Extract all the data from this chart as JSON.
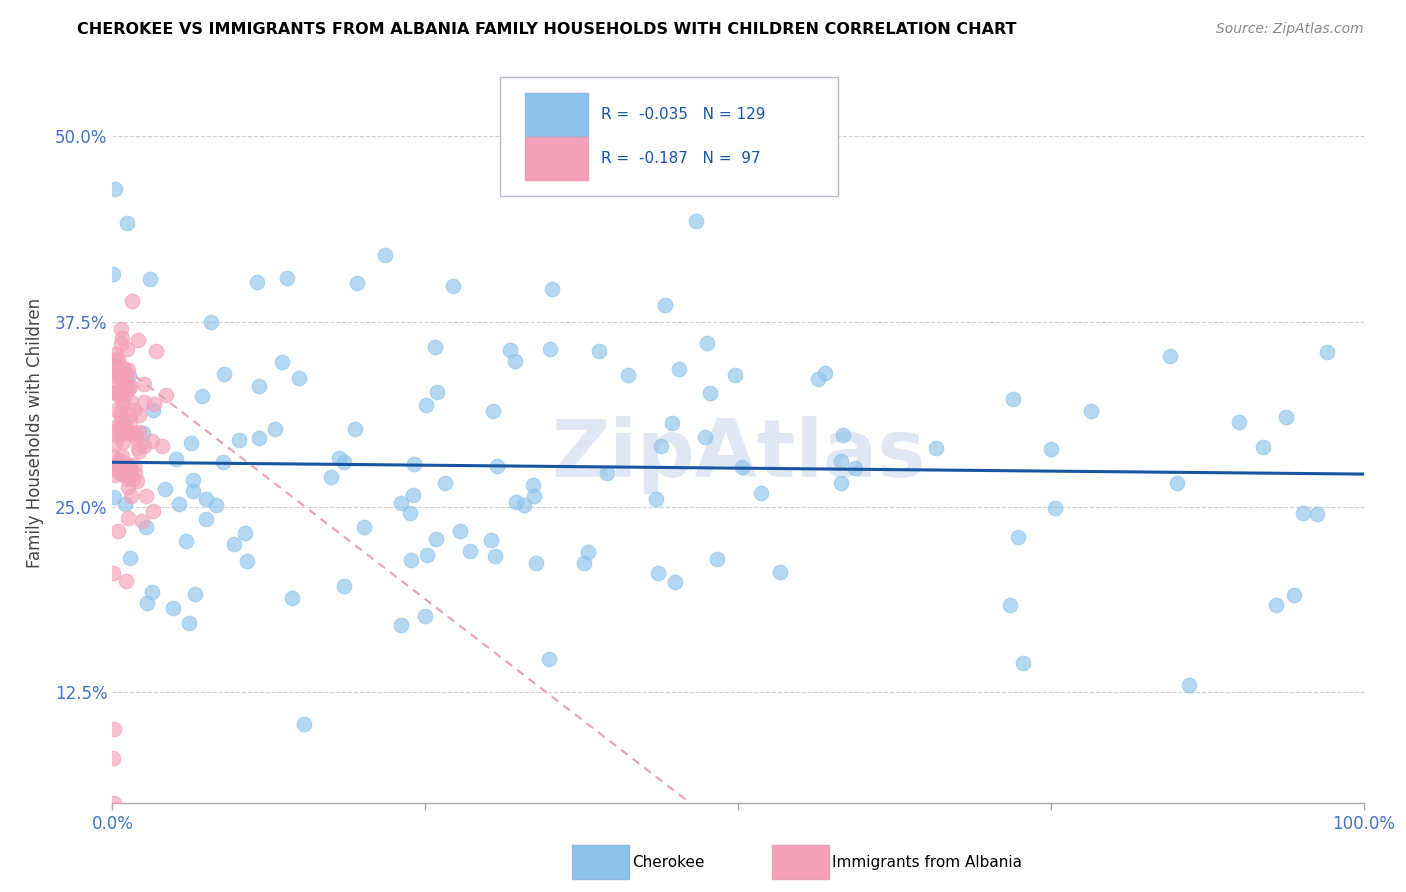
{
  "title": "CHEROKEE VS IMMIGRANTS FROM ALBANIA FAMILY HOUSEHOLDS WITH CHILDREN CORRELATION CHART",
  "source": "Source: ZipAtlas.com",
  "ylabel": "Family Households with Children",
  "legend_label1": "Cherokee",
  "legend_label2": "Immigrants from Albania",
  "R1": "-0.035",
  "N1": "129",
  "R2": "-0.187",
  "N2": "97",
  "color_cherokee": "#8DC3EA",
  "color_albania": "#F4A0B8",
  "trendline_cherokee": "#1855A3",
  "trendline_albania": "#E8A0B8",
  "watermark_color": "#C8D8EC",
  "xlim": [
    0,
    100
  ],
  "ylim": [
    5,
    55
  ],
  "yticks": [
    12.5,
    25.0,
    37.5,
    50.0
  ],
  "xtick_labels_show": [
    "0.0%",
    "100.0%"
  ],
  "xtick_positions_show": [
    0,
    100
  ],
  "grid_color": "#CCCCCC",
  "cherokee_seed": 12,
  "albania_seed": 99
}
